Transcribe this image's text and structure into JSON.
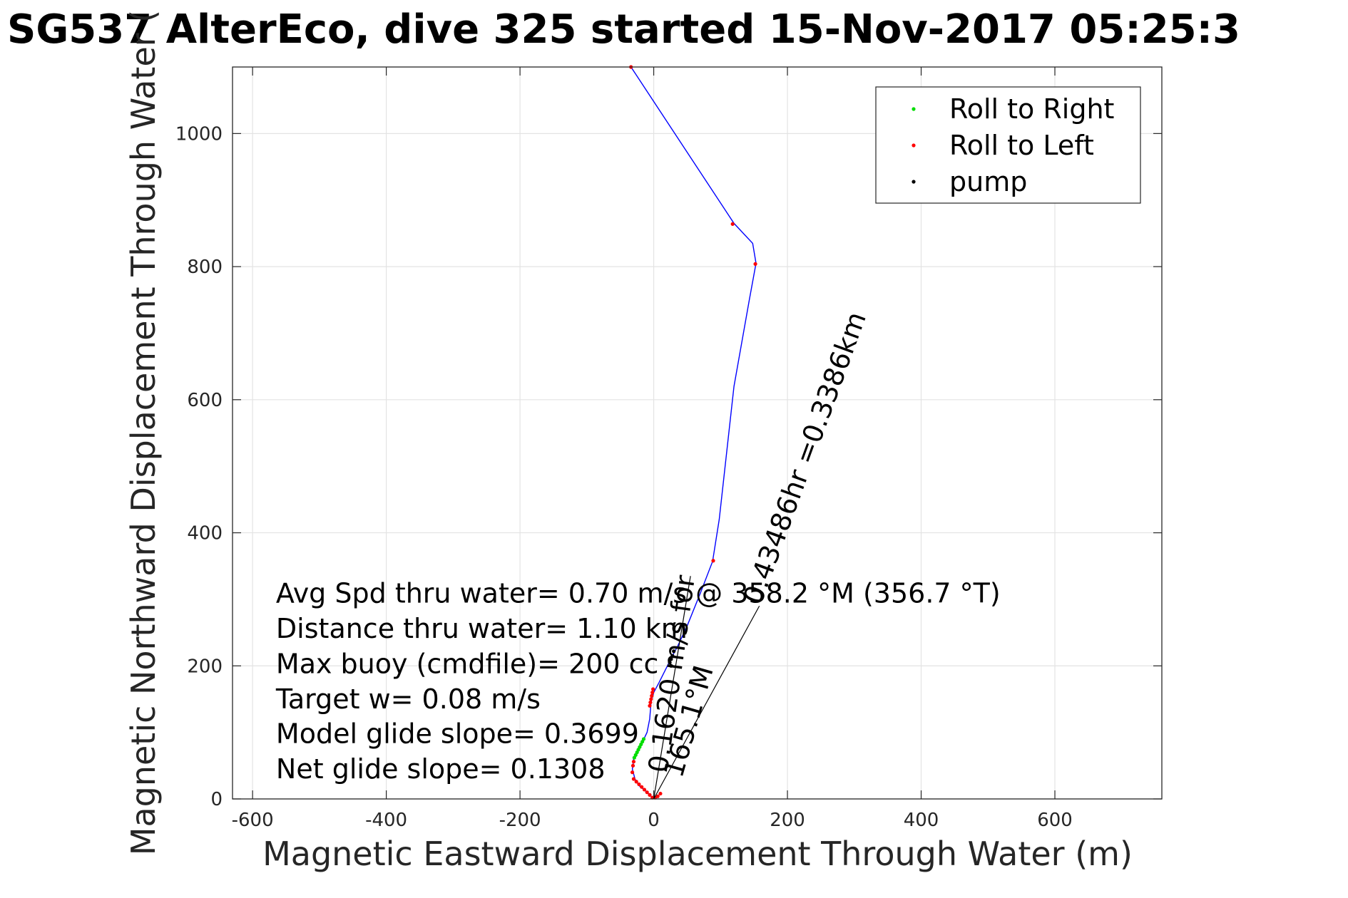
{
  "chart_data": {
    "type": "scatter",
    "title": "SG537 AlterEco, dive 325 started 15-Nov-2017 05:25:3",
    "xlabel": "Magnetic Eastward Displacement Through Water (m)",
    "ylabel": "Magnetic Northward Displacement Through Water (",
    "xlim": [
      -630,
      760
    ],
    "ylim": [
      0,
      1100
    ],
    "xticks": [
      -600,
      -400,
      -200,
      0,
      200,
      400,
      600
    ],
    "yticks": [
      0,
      200,
      400,
      600,
      800,
      1000
    ],
    "grid": true,
    "legend_position": "top-right",
    "legend": [
      {
        "label": "Roll to Right",
        "color": "#00dd00"
      },
      {
        "label": "Roll to Left",
        "color": "#ff0000"
      },
      {
        "label": "pump",
        "color": "#000000"
      }
    ],
    "series": [
      {
        "name": "track",
        "color": "#0000ff",
        "kind": "line",
        "x": [
          0,
          -5,
          -12,
          -22,
          -28,
          -32,
          -30,
          -24,
          -17,
          -10,
          -6,
          -4,
          0,
          8,
          18,
          28,
          36,
          50,
          70,
          88,
          98,
          120,
          143,
          153,
          148,
          120,
          -34
        ],
        "y": [
          0,
          5,
          12,
          20,
          30,
          45,
          60,
          72,
          85,
          100,
          120,
          145,
          160,
          175,
          195,
          215,
          230,
          260,
          310,
          357,
          420,
          620,
          750,
          805,
          835,
          865,
          1100
        ]
      },
      {
        "name": "Roll to Right",
        "color": "#00dd00",
        "kind": "points",
        "x": [
          -29,
          -27,
          -25,
          -23,
          -21,
          -19,
          -17,
          -15
        ],
        "y": [
          62,
          66,
          70,
          74,
          78,
          82,
          86,
          90
        ]
      },
      {
        "name": "Roll to Left",
        "color": "#ff0000",
        "kind": "points",
        "x": [
          -2,
          -6,
          -10,
          -14,
          -18,
          -22,
          -26,
          -30,
          -32,
          -31,
          -30,
          -6,
          -5,
          -4,
          -3,
          -2,
          -1,
          89,
          118,
          152,
          -34,
          2,
          6,
          10
        ],
        "y": [
          2,
          6,
          10,
          14,
          18,
          22,
          26,
          30,
          40,
          50,
          56,
          140,
          145,
          150,
          155,
          160,
          165,
          358,
          864,
          804,
          1100,
          2,
          4,
          8
        ]
      },
      {
        "name": "pump",
        "color": "#000000",
        "kind": "points",
        "x": [
          24,
          26,
          28,
          30,
          26
        ],
        "y": [
          205,
          210,
          215,
          222,
          200
        ]
      }
    ],
    "annotations": [
      {
        "text": "Avg Spd thru water=  0.70 m/s @ 358.2 °M (356.7 °T)",
        "x": -565,
        "y": 295
      },
      {
        "text": "Distance thru water=  1.10 km",
        "x": -565,
        "y": 242
      },
      {
        "text": "Max buoy (cmdfile)= 200 cc",
        "x": -565,
        "y": 189
      },
      {
        "text": "Target w= 0.08 m/s",
        "x": -565,
        "y": 136
      },
      {
        "text": "Model glide slope= 0.3699",
        "x": -565,
        "y": 84
      },
      {
        "text": "Net glide slope= 0.1308",
        "x": -565,
        "y": 31
      },
      {
        "text": "0.1620 m/s for",
        "x": 20,
        "y": 38,
        "angle": -82
      },
      {
        "text": "165.1°M",
        "x": 42,
        "y": 30,
        "angle": -74
      },
      {
        "text": "0.43486hr =0.3386km",
        "x": 160,
        "y": 290,
        "angle": -70
      }
    ],
    "current_lines": [
      {
        "x": [
          0,
          55
        ],
        "y": [
          0,
          335
        ]
      },
      {
        "x": [
          0,
          158
        ],
        "y": [
          0,
          290
        ]
      }
    ]
  }
}
